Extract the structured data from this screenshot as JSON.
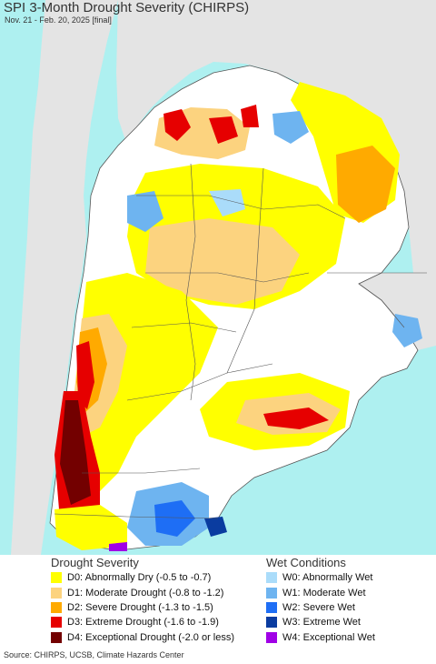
{
  "title": "SPI 3-Month Drought Severity (CHIRPS)",
  "subtitle": "Nov. 21 - Feb. 20, 2025 [final]",
  "legend": {
    "drought": {
      "heading": "Drought Severity",
      "items": [
        {
          "label": "D0: Abnormally Dry (-0.5 to -0.7)",
          "color": "#ffff00"
        },
        {
          "label": "D1: Moderate Drought (-0.8 to -1.2)",
          "color": "#fcd37f"
        },
        {
          "label": "D2: Severe Drought (-1.3 to -1.5)",
          "color": "#ffaa00"
        },
        {
          "label": "D3: Extreme Drought (-1.6 to -1.9)",
          "color": "#e60000"
        },
        {
          "label": "D4: Exceptional Drought (-2.0 or less)",
          "color": "#730000"
        }
      ]
    },
    "wet": {
      "heading": "Wet Conditions",
      "items": [
        {
          "label": "W0: Abnormally Wet",
          "color": "#aadcfa"
        },
        {
          "label": "W1: Moderate Wet",
          "color": "#6eb4f0"
        },
        {
          "label": "W2: Severe Wet",
          "color": "#1e6ef5"
        },
        {
          "label": "W3: Extreme Wet",
          "color": "#0a3ca0"
        },
        {
          "label": "W4: Exceptional Wet",
          "color": "#a000e6"
        }
      ]
    }
  },
  "colors": {
    "ocean": "#aef0f0",
    "land_outside": "#e4e4e4",
    "land_inside": "#ffffff",
    "borders": "#555555"
  },
  "source": "Source: CHIRPS, UCSB, Climate Hazards Center"
}
